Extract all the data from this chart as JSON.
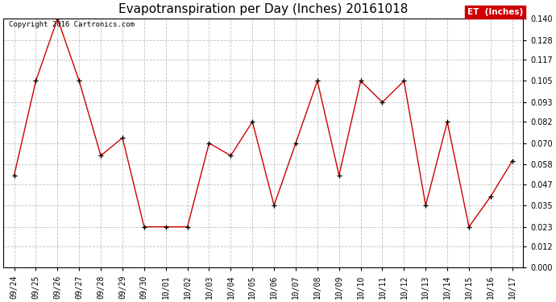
{
  "title": "Evapotranspiration per Day (Inches) 20161018",
  "copyright_text": "Copyright 2016 Cartronics.com",
  "legend_label": "ET  (Inches)",
  "x_labels": [
    "09/24",
    "09/25",
    "09/26",
    "09/27",
    "09/28",
    "09/29",
    "09/30",
    "10/01",
    "10/02",
    "10/03",
    "10/04",
    "10/05",
    "10/06",
    "10/07",
    "10/08",
    "10/09",
    "10/10",
    "10/11",
    "10/12",
    "10/13",
    "10/14",
    "10/15",
    "10/16",
    "10/17"
  ],
  "y_values": [
    0.052,
    0.105,
    0.14,
    0.105,
    0.063,
    0.073,
    0.023,
    0.023,
    0.023,
    0.07,
    0.063,
    0.082,
    0.035,
    0.07,
    0.105,
    0.052,
    0.105,
    0.093,
    0.105,
    0.035,
    0.082,
    0.023,
    0.04,
    0.06
  ],
  "line_color": "#cc0000",
  "marker": "+",
  "marker_color": "#000000",
  "bg_color": "#ffffff",
  "grid_color": "#c0c0c0",
  "ylim": [
    0.0,
    0.14
  ],
  "yticks": [
    0.0,
    0.012,
    0.023,
    0.035,
    0.047,
    0.058,
    0.07,
    0.082,
    0.093,
    0.105,
    0.117,
    0.128,
    0.14
  ],
  "title_fontsize": 11,
  "axis_fontsize": 7,
  "legend_bg": "#cc0000",
  "legend_text_color": "#ffffff"
}
